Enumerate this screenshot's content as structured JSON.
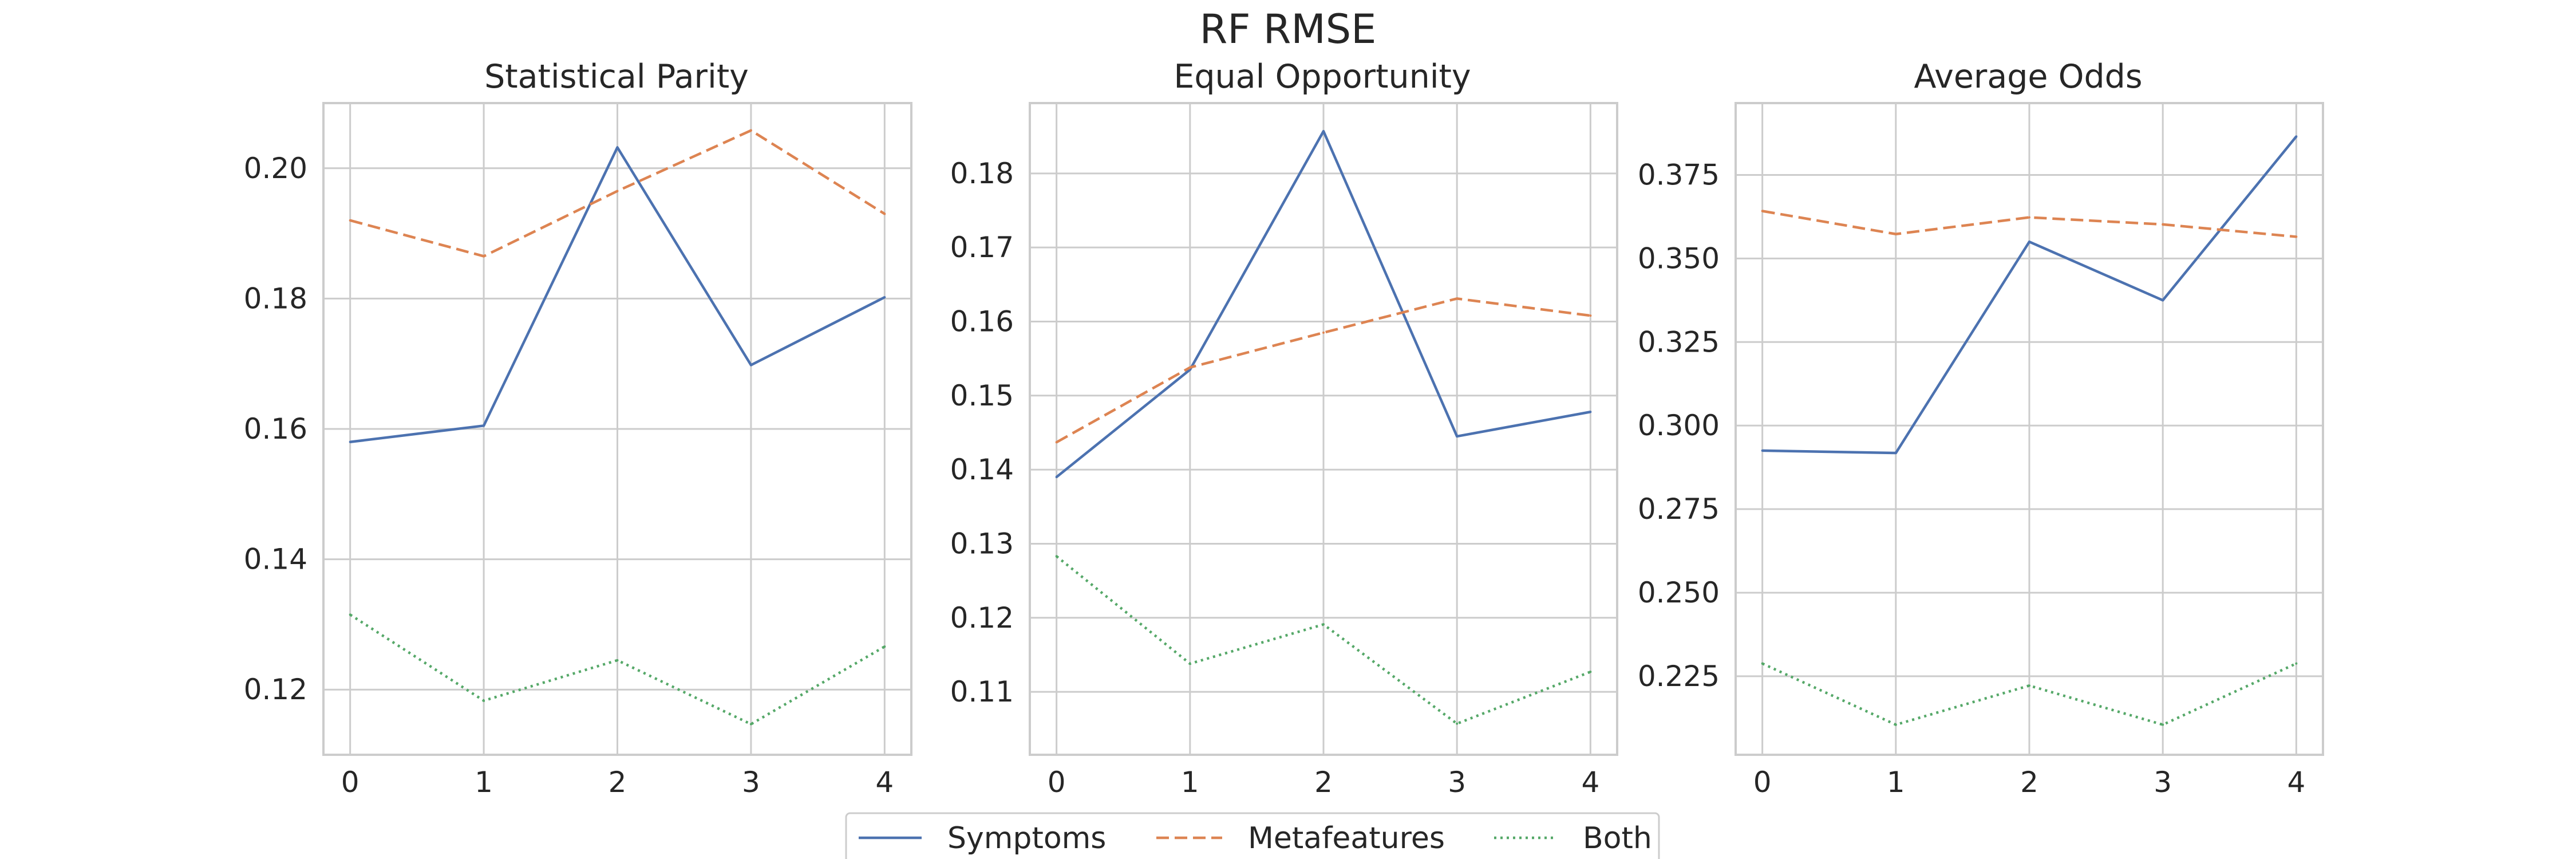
{
  "figure": {
    "title": "RF RMSE"
  },
  "legend": {
    "entries": [
      "Symptoms",
      "Metafeatures",
      "Both"
    ],
    "placement": "bottom-center",
    "styles": [
      "solid",
      "dashed",
      "dotted"
    ]
  },
  "colors": {
    "Symptoms": "#4c72b0",
    "Metafeatures": "#dd8452",
    "Both": "#55a868",
    "grid": "#cccccc",
    "frame": "#cccccc"
  },
  "chart_data": [
    {
      "type": "line",
      "title": "Statistical Parity",
      "xlabel": "",
      "ylabel": "",
      "x": [
        0,
        1,
        2,
        3,
        4
      ],
      "xticks": [
        "0",
        "1",
        "2",
        "3",
        "4"
      ],
      "yticks": [
        "0.12",
        "0.14",
        "0.16",
        "0.18",
        "0.20"
      ],
      "xlim": [
        -0.2,
        4.2
      ],
      "ylim": [
        0.11,
        0.21
      ],
      "grid": true,
      "series": [
        {
          "name": "Symptoms",
          "values": [
            0.158,
            0.1605,
            0.2032,
            0.1698,
            0.1802
          ]
        },
        {
          "name": "Metafeatures",
          "values": [
            0.192,
            0.1865,
            0.1965,
            0.2058,
            0.193
          ]
        },
        {
          "name": "Both",
          "values": [
            0.1315,
            0.1183,
            0.1245,
            0.1147,
            0.1266
          ]
        }
      ]
    },
    {
      "type": "line",
      "title": "Equal Opportunity",
      "xlabel": "",
      "ylabel": "",
      "x": [
        0,
        1,
        2,
        3,
        4
      ],
      "xticks": [
        "0",
        "1",
        "2",
        "3",
        "4"
      ],
      "yticks": [
        "0.11",
        "0.12",
        "0.13",
        "0.14",
        "0.15",
        "0.16",
        "0.17",
        "0.18"
      ],
      "xlim": [
        -0.2,
        4.2
      ],
      "ylim": [
        0.1015,
        0.1895
      ],
      "grid": true,
      "series": [
        {
          "name": "Symptoms",
          "values": [
            0.139,
            0.1535,
            0.1857,
            0.1445,
            0.1478
          ]
        },
        {
          "name": "Metafeatures",
          "values": [
            0.1437,
            0.1538,
            0.1585,
            0.1631,
            0.1608
          ]
        },
        {
          "name": "Both",
          "values": [
            0.1283,
            0.1138,
            0.1191,
            0.1057,
            0.1127
          ]
        }
      ]
    },
    {
      "type": "line",
      "title": "Average Odds",
      "xlabel": "",
      "ylabel": "",
      "x": [
        0,
        1,
        2,
        3,
        4
      ],
      "xticks": [
        "0",
        "1",
        "2",
        "3",
        "4"
      ],
      "yticks": [
        "0.225",
        "0.250",
        "0.275",
        "0.300",
        "0.325",
        "0.350",
        "0.375"
      ],
      "xlim": [
        -0.2,
        4.2
      ],
      "ylim": [
        0.2015,
        0.3965
      ],
      "grid": true,
      "series": [
        {
          "name": "Symptoms",
          "values": [
            0.2925,
            0.2918,
            0.355,
            0.3375,
            0.3865
          ]
        },
        {
          "name": "Metafeatures",
          "values": [
            0.3642,
            0.3573,
            0.3623,
            0.3602,
            0.3565
          ]
        },
        {
          "name": "Both",
          "values": [
            0.2288,
            0.2105,
            0.2222,
            0.2105,
            0.2288
          ]
        }
      ]
    }
  ]
}
